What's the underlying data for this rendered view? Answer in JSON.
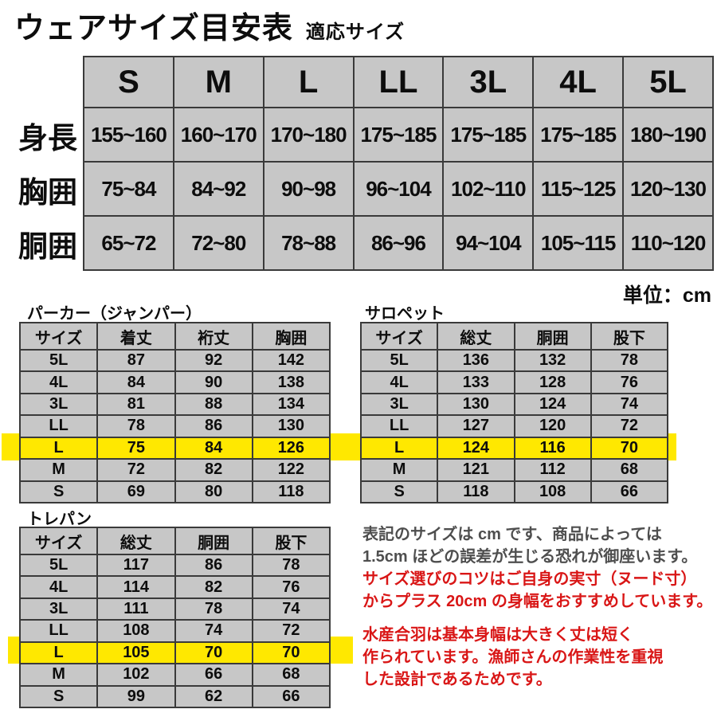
{
  "page": {
    "title": "ウェアサイズ目安表",
    "subtitle": "適応サイズ",
    "unit_label": "単位：cm"
  },
  "main_table": {
    "columns": [
      "S",
      "M",
      "L",
      "LL",
      "3L",
      "4L",
      "5L"
    ],
    "row_labels": [
      "身長",
      "胸囲",
      "胴囲"
    ],
    "rows": [
      [
        "155~160",
        "160~170",
        "170~180",
        "175~185",
        "175~185",
        "175~185",
        "180~190"
      ],
      [
        "75~84",
        "84~92",
        "90~98",
        "96~104",
        "102~110",
        "115~125",
        "120~130"
      ],
      [
        "65~72",
        "72~80",
        "78~88",
        "86~96",
        "94~104",
        "105~115",
        "110~120"
      ]
    ]
  },
  "tables": {
    "parka": {
      "title": "パーカー（ジャンパー）",
      "columns": [
        "サイズ",
        "着丈",
        "裄丈",
        "胸囲"
      ],
      "highlight": "L",
      "rows": [
        [
          "5L",
          "87",
          "92",
          "142"
        ],
        [
          "4L",
          "84",
          "90",
          "138"
        ],
        [
          "3L",
          "81",
          "88",
          "134"
        ],
        [
          "LL",
          "78",
          "86",
          "130"
        ],
        [
          "L",
          "75",
          "84",
          "126"
        ],
        [
          "M",
          "72",
          "82",
          "122"
        ],
        [
          "S",
          "69",
          "80",
          "118"
        ]
      ]
    },
    "salopette": {
      "title": "サロペット",
      "columns": [
        "サイズ",
        "総丈",
        "胴囲",
        "股下"
      ],
      "highlight": "L",
      "rows": [
        [
          "5L",
          "136",
          "132",
          "78"
        ],
        [
          "4L",
          "133",
          "128",
          "76"
        ],
        [
          "3L",
          "130",
          "124",
          "74"
        ],
        [
          "LL",
          "127",
          "120",
          "72"
        ],
        [
          "L",
          "124",
          "116",
          "70"
        ],
        [
          "M",
          "121",
          "112",
          "68"
        ],
        [
          "S",
          "118",
          "108",
          "66"
        ]
      ]
    },
    "trepan": {
      "title": "トレパン",
      "columns": [
        "サイズ",
        "総丈",
        "胴囲",
        "股下"
      ],
      "highlight": "L",
      "rows": [
        [
          "5L",
          "117",
          "86",
          "78"
        ],
        [
          "4L",
          "114",
          "82",
          "76"
        ],
        [
          "3L",
          "111",
          "78",
          "74"
        ],
        [
          "LL",
          "108",
          "74",
          "72"
        ],
        [
          "L",
          "105",
          "70",
          "70"
        ],
        [
          "M",
          "102",
          "66",
          "68"
        ],
        [
          "S",
          "99",
          "62",
          "66"
        ]
      ]
    }
  },
  "notes": {
    "intro_gray": [
      "表記のサイズは cm です、商品によっては",
      "1.5cm ほどの誤差が生じる恐れが御座います。"
    ],
    "intro_red": [
      "サイズ選びのコツはご自身の実寸（ヌード寸）",
      "からプラス 20cm の身幅をおすすめしています。"
    ],
    "body_red": [
      "水産合羽は基本身幅は大きく丈は短く",
      "作られています。漁師さんの作業性を重視",
      "した設計であるためです。"
    ]
  },
  "colors": {
    "cell_gray": "#c7c7c7",
    "highlight_yellow": "#ffe800",
    "border_dark": "#3a3a3a",
    "note_gray": "#4e4e4e",
    "note_red": "#d91616"
  }
}
